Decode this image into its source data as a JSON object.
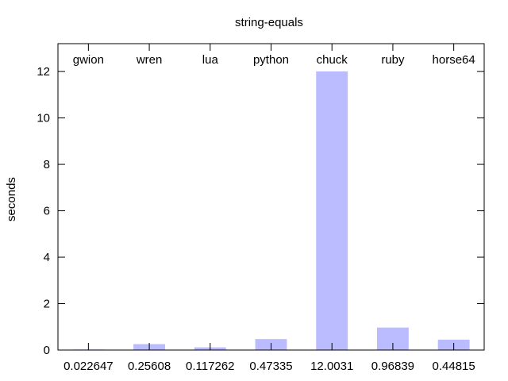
{
  "chart_data": {
    "type": "bar",
    "title": "string-equals",
    "ylabel": "seconds",
    "xlabel": "",
    "categories": [
      "gwion",
      "wren",
      "lua",
      "python",
      "chuck",
      "ruby",
      "horse64"
    ],
    "values": [
      0.022647,
      0.25608,
      0.117262,
      0.47335,
      12.0031,
      0.96839,
      0.44815
    ],
    "value_labels": [
      "0.022647",
      "0.25608",
      "0.117262",
      "0.47335",
      "12.0031",
      "0.96839",
      "0.44815"
    ],
    "ylim": [
      0,
      13.2
    ],
    "yticks": [
      0,
      2,
      4,
      6,
      8,
      10,
      12
    ],
    "grid": false,
    "legend": "none",
    "bar_color": "#bbbbff",
    "category_label_position": "top-inside",
    "value_label_position": "bottom"
  }
}
